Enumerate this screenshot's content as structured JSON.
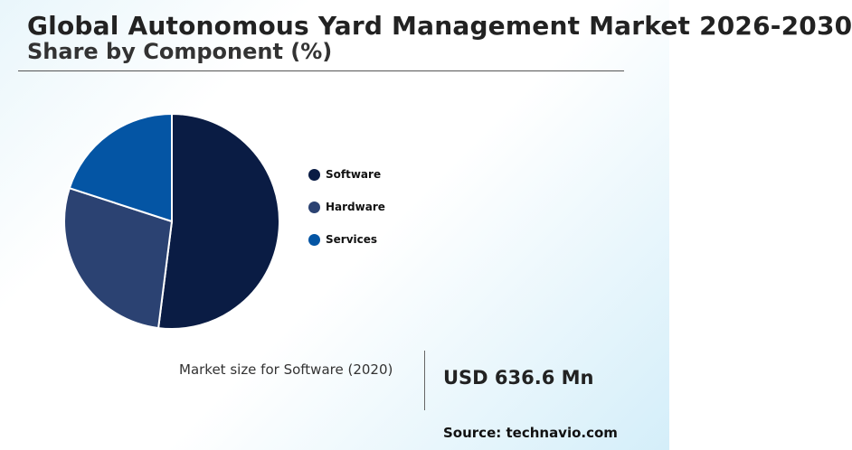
{
  "header": {
    "title": "Global Autonomous Yard Management Market 2026-2030",
    "subtitle": "Share by Component (%)"
  },
  "chart_data": {
    "type": "pie",
    "categories": [
      "Software",
      "Hardware",
      "Services"
    ],
    "values": [
      52,
      28,
      20
    ],
    "colors": [
      "#0a1c44",
      "#2b4272",
      "#0455a4"
    ],
    "legend_position": "right",
    "start_angle_deg": 0,
    "direction": "clockwise"
  },
  "stat": {
    "label": "Market size for Software (2020)",
    "value": "USD 636.6 Mn"
  },
  "source": "Source: technavio.com"
}
